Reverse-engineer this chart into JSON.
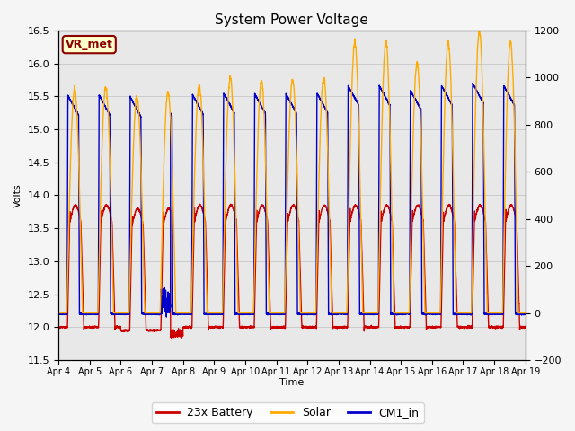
{
  "title": "System Power Voltage",
  "ylabel_left": "Volts",
  "xlabel": "Time",
  "ylim_left": [
    11.5,
    16.5
  ],
  "ylim_right": [
    -200,
    1200
  ],
  "yticks_left": [
    11.5,
    12.0,
    12.5,
    13.0,
    13.5,
    14.0,
    14.5,
    15.0,
    15.5,
    16.0,
    16.5
  ],
  "yticks_right": [
    -200,
    0,
    200,
    400,
    600,
    800,
    1000,
    1200
  ],
  "xtick_labels": [
    "Apr 4",
    "Apr 5",
    "Apr 6",
    "Apr 7",
    "Apr 8",
    "Apr 9",
    "Apr 10",
    "Apr 11",
    "Apr 12",
    "Apr 13",
    "Apr 14",
    "Apr 15",
    "Apr 16",
    "Apr 17",
    "Apr 18",
    "Apr 19"
  ],
  "color_battery": "#cc0000",
  "color_solar": "#ffaa00",
  "color_cm1": "#0000cc",
  "legend_labels": [
    "23x Battery",
    "Solar",
    "CM1_in"
  ],
  "annotation_text": "VR_met",
  "annotation_color": "#8b0000",
  "annotation_bg": "#ffffcc",
  "fig_bg": "#f5f5f5",
  "plot_bg": "#e8e8e8",
  "title_fontsize": 11,
  "axis_fontsize": 8,
  "legend_fontsize": 9,
  "linewidth": 1.0,
  "grid_color": "#d0d0d0",
  "n_points": 4000
}
